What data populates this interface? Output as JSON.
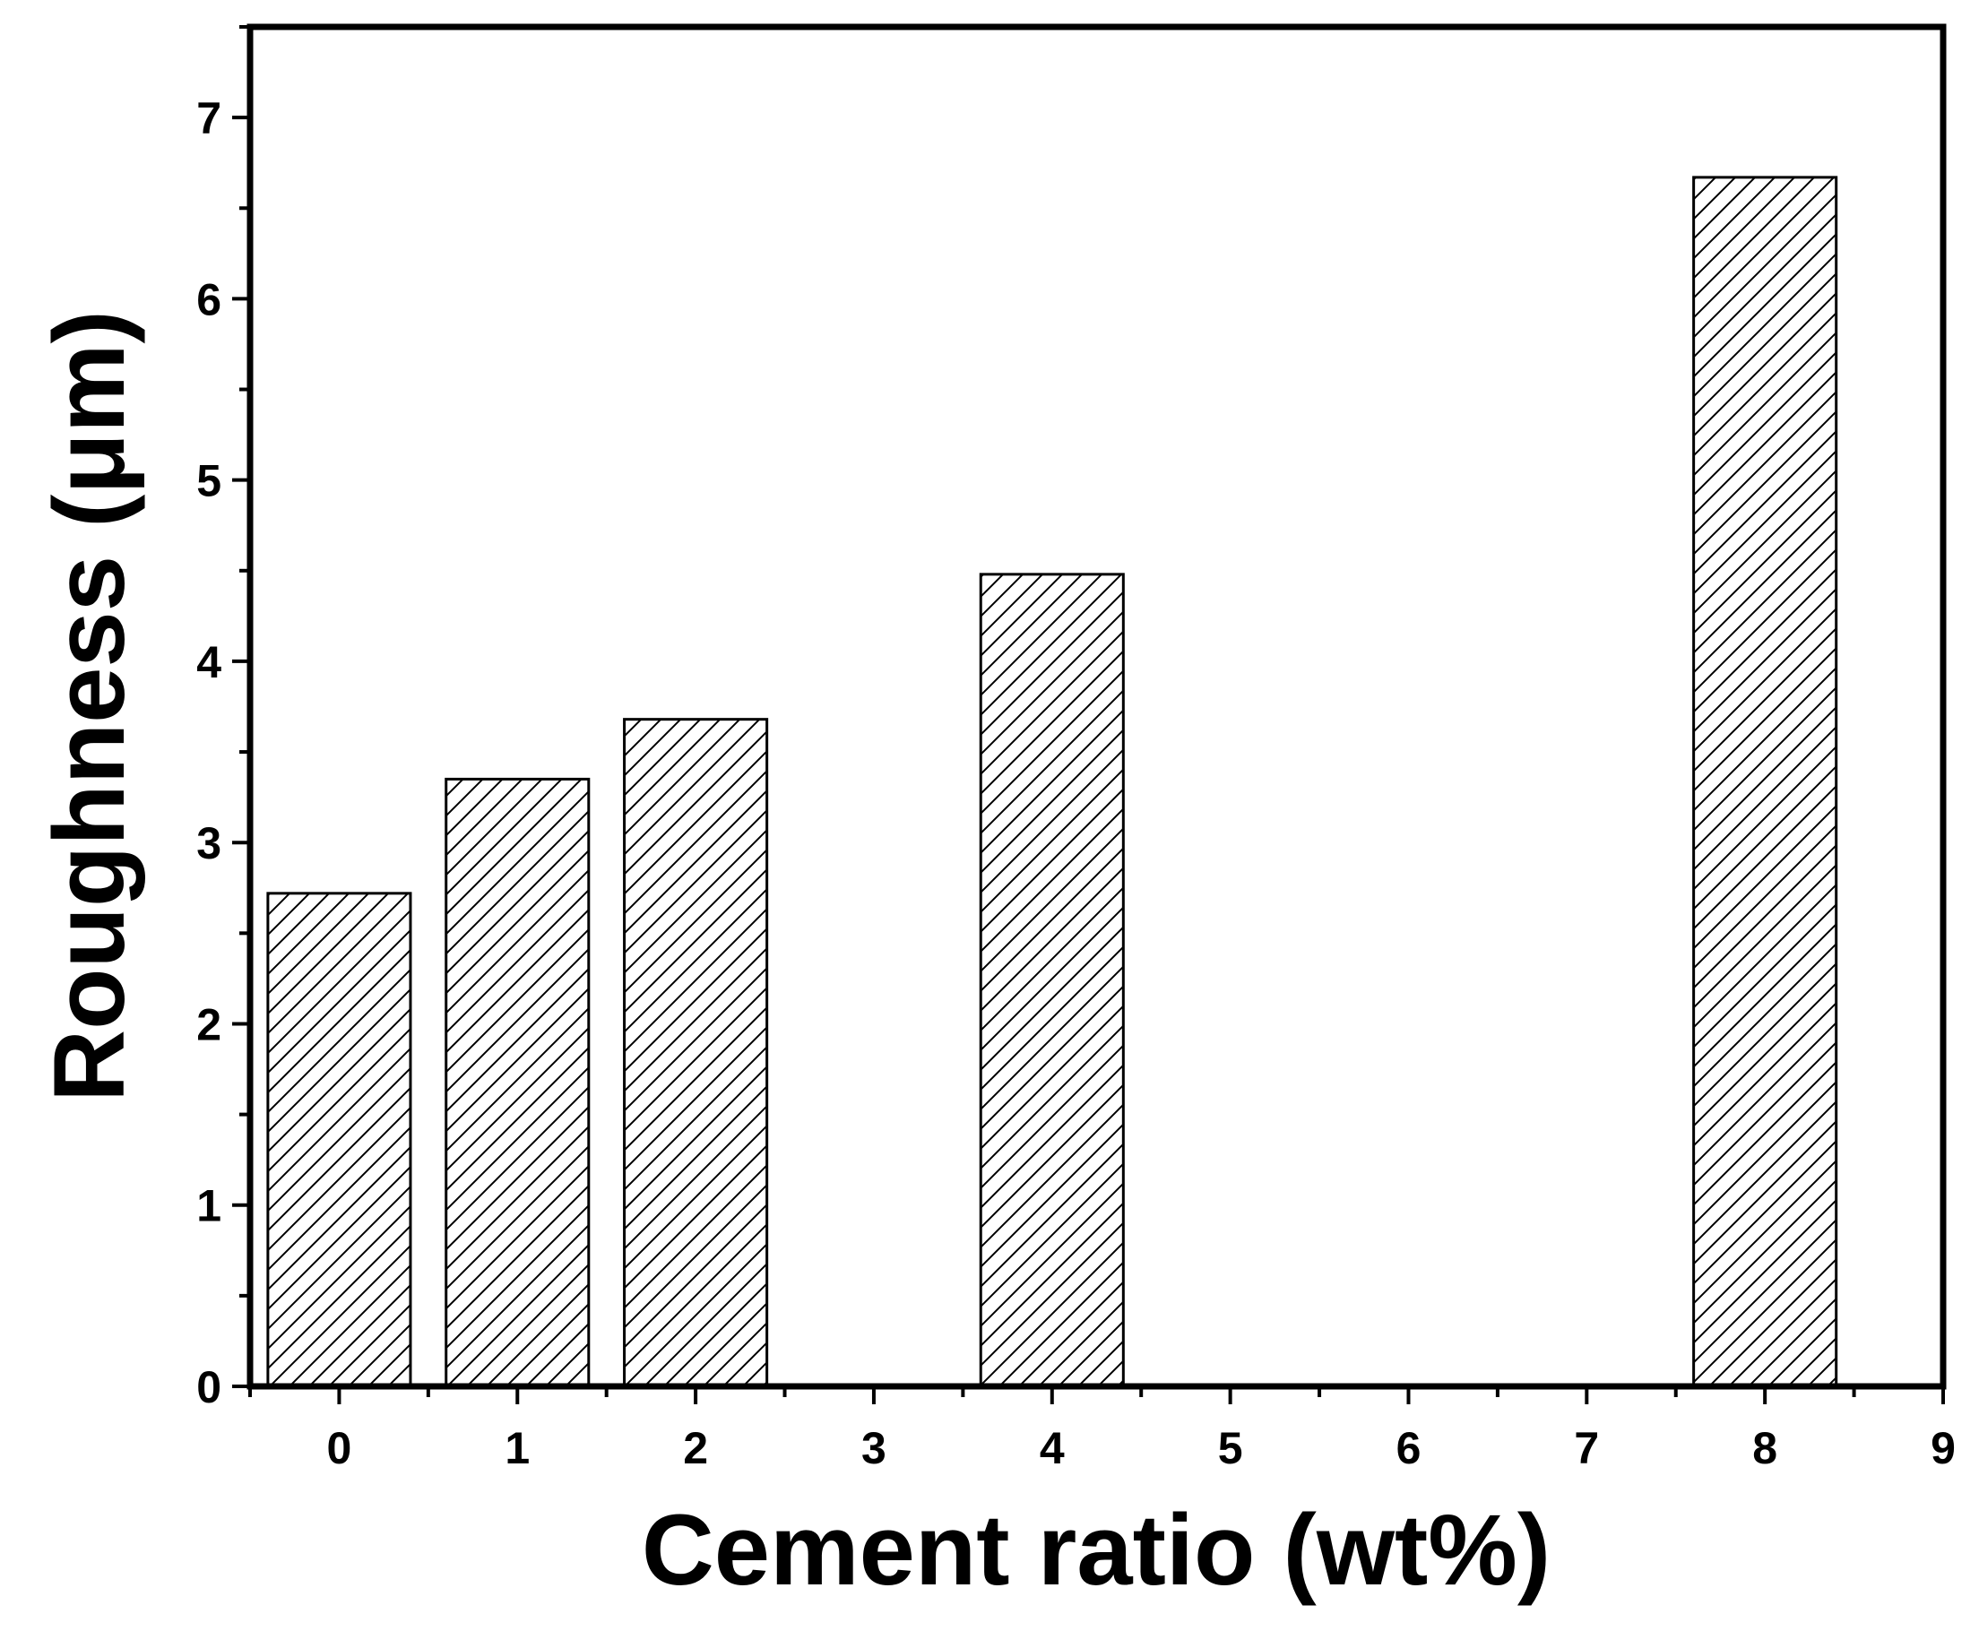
{
  "chart_data": {
    "type": "bar",
    "x": [
      0,
      1,
      2,
      4,
      8
    ],
    "values": [
      2.72,
      3.35,
      3.68,
      4.48,
      6.67
    ],
    "xlabel": "Cement ratio (wt%)",
    "ylabel": "Roughness (μm)",
    "xlim": [
      -0.5,
      9
    ],
    "ylim": [
      0,
      7.5
    ],
    "xticks": [
      0,
      1,
      2,
      3,
      4,
      5,
      6,
      7,
      8,
      9
    ],
    "yticks": [
      0,
      1,
      2,
      3,
      4,
      5,
      6,
      7
    ],
    "bar_fill": "hatched",
    "colors": {
      "bar_stroke": "#000000",
      "hatch": "#000000",
      "background": "#ffffff"
    },
    "grid": false,
    "legend": "none"
  }
}
